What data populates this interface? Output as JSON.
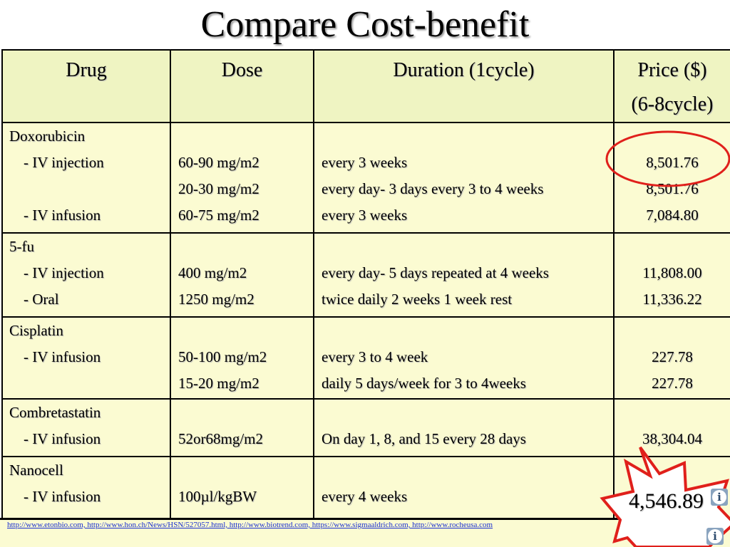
{
  "title": "Compare Cost-benefit",
  "headers": {
    "drug": "Drug",
    "dose": "Dose",
    "duration": "Duration (1cycle)",
    "price_line1": "Price ($)",
    "price_line2": "(6-8cycle)"
  },
  "rows": [
    {
      "drug": "Doxorubicin",
      "routes": [
        "- IV injection",
        "- IV infusion"
      ],
      "doses": [
        "60-90 mg/m2",
        "20-30 mg/m2",
        "60-75 mg/m2"
      ],
      "durations": [
        "every 3 weeks",
        "every day- 3 days every 3 to 4 weeks",
        "every 3 weeks"
      ],
      "prices": [
        "8,501.76",
        "8,501.76",
        "7,084.80"
      ]
    },
    {
      "drug": "5-fu",
      "routes": [
        "- IV injection",
        "- Oral"
      ],
      "doses": [
        "400 mg/m2",
        "1250 mg/m2"
      ],
      "durations": [
        "every day- 5 days repeated at 4 weeks",
        "twice daily 2 weeks 1 week rest"
      ],
      "prices": [
        "11,808.00",
        "11,336.22"
      ]
    },
    {
      "drug": "Cisplatin",
      "routes": [
        "- IV infusion"
      ],
      "doses": [
        "50-100 mg/m2",
        "15-20 mg/m2"
      ],
      "durations": [
        "every 3 to 4 week",
        "daily 5 days/week for 3 to 4weeks"
      ],
      "prices": [
        "227.78",
        "227.78"
      ]
    },
    {
      "drug": "Combretastatin",
      "routes": [
        "- IV infusion"
      ],
      "doses": [
        "52or68mg/m2"
      ],
      "durations": [
        "On day 1, 8, and 15 every 28 days"
      ],
      "prices": [
        "38,304.04"
      ]
    },
    {
      "drug": "Nanocell",
      "routes": [
        "- IV infusion"
      ],
      "doses": [
        "100µl/kgBW"
      ],
      "durations": [
        "every 4 weeks"
      ],
      "prices": [
        "4,546.89"
      ]
    }
  ],
  "references": "http://www.etonbio.com, http://www.hon.ch/News/HSN/527057.html, http://www.biotrend.com, https://www.sigmaaldrich.com, http://www.rocheusa.com",
  "icons": [
    "info-icon",
    "info-icon"
  ],
  "colors": {
    "table_bg": "#fbfbd2",
    "header_bg": "#eff4c2",
    "highlight": "#e0201b",
    "link": "#1a2fd0"
  }
}
